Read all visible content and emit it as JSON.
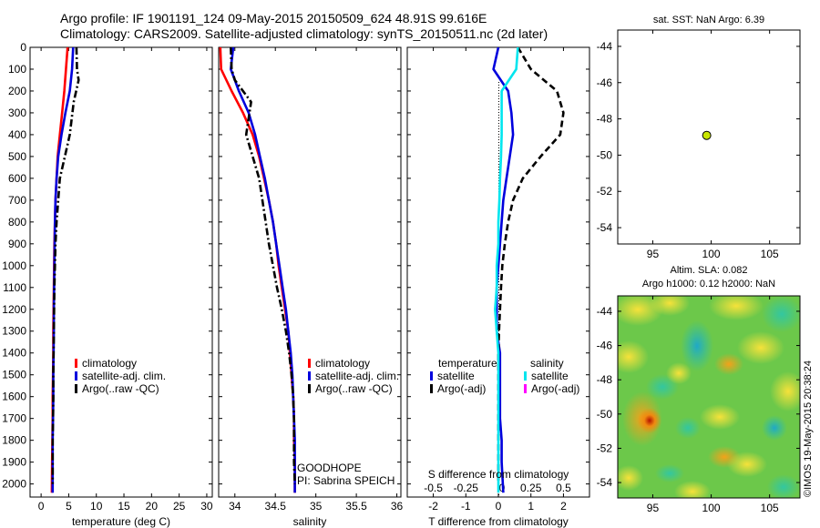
{
  "header": {
    "line1": "Argo profile: IF 1901191_124 09-May-2015 20150509_624 48.91S 99.616E",
    "line2": "Climatology: CARS2009. Satellite-adjusted climatology: synTS_20150511.nc (2d later)"
  },
  "colors": {
    "climatology": "#ff0000",
    "satellite": "#0000dd",
    "argo": "#000000",
    "salinity_satellite": "#00e5ee",
    "salinity_argo": "#ff00ff",
    "sst_marker": "#c8e600"
  },
  "side": {
    "sst_title": "sat. SST: NaN Argo: 6.39",
    "sla_title1": "Altim. SLA: 0.082",
    "sla_title2": "Argo h1000: 0.12 h2000: NaN",
    "credit": "©IMOS 19-May-2015 20:38:24"
  },
  "chart_data": [
    {
      "type": "line",
      "name": "temperature",
      "xlabel": "temperature (deg C)",
      "xlim": [
        -2,
        31
      ],
      "ylim": [
        2060,
        0
      ],
      "xticks": [
        0,
        5,
        10,
        15,
        20,
        25,
        30
      ],
      "yticks": [
        0,
        100,
        200,
        300,
        400,
        500,
        600,
        700,
        800,
        900,
        1000,
        1100,
        1200,
        1300,
        1400,
        1500,
        1600,
        1700,
        1800,
        1900,
        2000
      ],
      "legend": [
        "climatology",
        "satellite-adj. clim.",
        "Argo(..raw -QC)"
      ],
      "series": [
        {
          "name": "climatology",
          "style": "solid",
          "color": "#ff0000",
          "x": [
            4.8,
            4.5,
            4.2,
            3.8,
            3.4,
            3.0,
            2.8,
            2.6,
            2.5,
            2.4,
            2.35,
            2.3,
            2.25,
            2.2,
            2.2,
            2.15,
            2.1,
            2.1,
            2.05,
            2.0,
            1.95
          ],
          "y": [
            0,
            100,
            200,
            300,
            400,
            500,
            600,
            700,
            800,
            900,
            1000,
            1100,
            1200,
            1300,
            1400,
            1500,
            1600,
            1700,
            1800,
            1900,
            2040
          ]
        },
        {
          "name": "satellite-adj. clim.",
          "style": "solid",
          "color": "#0000dd",
          "x": [
            5.8,
            5.6,
            5.2,
            4.4,
            3.7,
            3.1,
            2.8,
            2.6,
            2.5,
            2.45,
            2.4,
            2.35,
            2.3,
            2.3,
            2.25,
            2.2,
            2.2,
            2.15,
            2.1,
            2.1,
            2.1
          ],
          "y": [
            0,
            100,
            200,
            300,
            400,
            500,
            600,
            700,
            800,
            900,
            1000,
            1100,
            1200,
            1300,
            1400,
            1500,
            1600,
            1700,
            1800,
            1900,
            2040
          ]
        },
        {
          "name": "Argo(..raw -QC)",
          "style": "dashdot",
          "color": "#000000",
          "x": [
            6.4,
            6.5,
            6.8,
            5.9,
            5.2,
            4.3,
            3.4,
            3.1,
            2.8,
            2.6,
            2.5,
            2.4,
            2.35,
            2.3,
            2.25,
            2.2,
            2.2,
            2.15,
            2.1,
            2.1,
            2.1
          ],
          "y": [
            0,
            100,
            150,
            250,
            400,
            500,
            600,
            700,
            800,
            900,
            1000,
            1100,
            1200,
            1300,
            1400,
            1500,
            1600,
            1700,
            1800,
            1900,
            2000
          ]
        }
      ]
    },
    {
      "type": "line",
      "name": "salinity",
      "xlabel": "salinity",
      "xlim": [
        33.8,
        36.05
      ],
      "ylim": [
        2060,
        0
      ],
      "xticks": [
        34,
        34.5,
        35,
        35.5,
        36
      ],
      "yticks": [
        0,
        100,
        200,
        300,
        400,
        500,
        600,
        700,
        800,
        900,
        1000,
        1100,
        1200,
        1300,
        1400,
        1500,
        1600,
        1700,
        1800,
        1900,
        2000
      ],
      "legend": [
        "climatology",
        "satellite-adj. clim.",
        "Argo(..raw -QC)"
      ],
      "annotations": [
        "GOODHOPE",
        "PI: Sabrina SPEICH"
      ],
      "series": [
        {
          "name": "climatology",
          "style": "solid",
          "color": "#ff0000",
          "x": [
            33.82,
            33.83,
            33.96,
            34.1,
            34.22,
            34.3,
            34.36,
            34.42,
            34.47,
            34.51,
            34.54,
            34.58,
            34.62,
            34.66,
            34.68,
            34.7,
            34.72,
            34.73,
            34.73,
            34.74,
            34.74
          ],
          "y": [
            0,
            100,
            200,
            300,
            400,
            500,
            600,
            700,
            800,
            900,
            1000,
            1100,
            1200,
            1300,
            1400,
            1500,
            1600,
            1700,
            1800,
            1900,
            2040
          ]
        },
        {
          "name": "satellite-adj. clim.",
          "style": "solid",
          "color": "#0000dd",
          "x": [
            33.98,
            33.95,
            34.05,
            34.17,
            34.25,
            34.31,
            34.37,
            34.42,
            34.47,
            34.51,
            34.55,
            34.59,
            34.63,
            34.66,
            34.69,
            34.71,
            34.72,
            34.73,
            34.74,
            34.74,
            34.74
          ],
          "y": [
            0,
            100,
            200,
            300,
            400,
            500,
            600,
            700,
            800,
            900,
            1000,
            1100,
            1200,
            1300,
            1400,
            1500,
            1600,
            1700,
            1800,
            1900,
            2040
          ]
        },
        {
          "name": "Argo(..raw -QC)",
          "style": "dashdot",
          "color": "#000000",
          "x": [
            33.95,
            33.96,
            34.0,
            34.2,
            34.14,
            34.22,
            34.3,
            34.34,
            34.38,
            34.42,
            34.47,
            34.52,
            34.58,
            34.63,
            34.67,
            34.7,
            34.72,
            34.73,
            34.73,
            34.73,
            34.74
          ],
          "y": [
            0,
            100,
            150,
            250,
            400,
            500,
            600,
            700,
            800,
            900,
            1000,
            1100,
            1200,
            1300,
            1400,
            1500,
            1600,
            1700,
            1800,
            1900,
            2000
          ]
        }
      ]
    },
    {
      "type": "line",
      "name": "difference",
      "xlabel": "T difference from climatology",
      "xlabel_top": "S difference from climatology",
      "xlim": [
        -2.8,
        2.8
      ],
      "ylim": [
        2060,
        0
      ],
      "xticks": [
        -2,
        -1,
        0,
        1,
        2
      ],
      "xticks_top_labels": [
        "-0.5",
        "-0.25",
        "0",
        "0.25",
        "0.5"
      ],
      "yticks": [
        0,
        100,
        200,
        300,
        400,
        500,
        600,
        700,
        800,
        900,
        1000,
        1100,
        1200,
        1300,
        1400,
        1500,
        1600,
        1700,
        1800,
        1900,
        2000
      ],
      "legend_headers": [
        "temperature",
        "salinity"
      ],
      "legend": [
        "satellite",
        "Argo(-adj)",
        "satellite",
        "Argo(-adj)"
      ],
      "series": [
        {
          "name": "satellite",
          "style": "solid",
          "color": "#0000dd",
          "x": [
            0.0,
            -0.15,
            0.3,
            0.4,
            0.45,
            0.35,
            0.25,
            0.15,
            0.1,
            0.05,
            0.0,
            -0.05,
            -0.05,
            -0.05,
            0.05,
            0.05,
            0.05,
            0.05,
            0.1,
            0.1,
            0.15
          ],
          "y": [
            0,
            100,
            200,
            300,
            400,
            500,
            600,
            700,
            800,
            900,
            1000,
            1100,
            1200,
            1300,
            1400,
            1500,
            1600,
            1700,
            1800,
            1900,
            2040
          ]
        },
        {
          "name": "Argo(-adj)",
          "style": "dashed",
          "color": "#000000",
          "x": [
            0.6,
            1.0,
            1.8,
            2.0,
            1.9,
            1.3,
            0.75,
            0.45,
            0.3,
            0.2,
            0.12,
            0.08,
            0.05,
            0.02,
            0.0,
            0.0,
            0.0,
            0.0,
            0.0,
            0.0,
            0.0
          ],
          "y": [
            0,
            100,
            200,
            300,
            400,
            500,
            600,
            700,
            800,
            900,
            1000,
            1100,
            1200,
            1300,
            1400,
            1500,
            1600,
            1700,
            1800,
            1900,
            2000
          ]
        },
        {
          "name": "salinity satellite",
          "style": "solid",
          "color": "#00e5ee",
          "x": [
            0.6,
            0.55,
            0.1,
            0.1,
            0.1,
            0.08,
            0.05,
            0.03,
            0.0,
            0.0,
            -0.05,
            -0.05,
            -0.1,
            -0.05,
            0.0,
            0.0,
            0.0,
            0.0,
            0.0,
            0.0,
            0.0
          ],
          "y": [
            0,
            100,
            200,
            300,
            400,
            500,
            600,
            700,
            800,
            900,
            1000,
            1100,
            1200,
            1300,
            1400,
            1500,
            1600,
            1700,
            1800,
            1900,
            2040
          ]
        }
      ]
    },
    {
      "type": "scatter",
      "name": "sst_map",
      "title": "sat. SST: NaN Argo: 6.39",
      "xlim": [
        92,
        107.6
      ],
      "ylim": [
        -54.9,
        -43.1
      ],
      "xticks": [
        95,
        100,
        105
      ],
      "yticks": [
        -44,
        -46,
        -48,
        -50,
        -52,
        -54
      ],
      "points": [
        {
          "x": 99.616,
          "y": -48.91
        }
      ]
    },
    {
      "type": "heatmap",
      "name": "sla_map",
      "title": "Altim. SLA: 0.082",
      "xlim": [
        92,
        107.6
      ],
      "ylim": [
        -54.9,
        -43.1
      ],
      "xticks": [
        95,
        100,
        105
      ],
      "yticks": [
        -44,
        -46,
        -48,
        -50,
        -52,
        -54
      ]
    }
  ]
}
